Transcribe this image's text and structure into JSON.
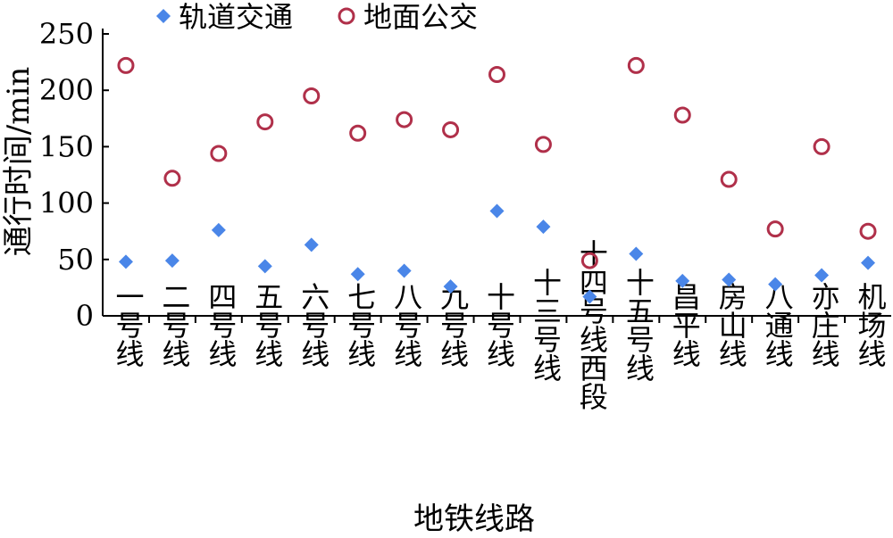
{
  "chart_data": {
    "type": "scatter",
    "title": "",
    "xlabel": "地铁线路",
    "ylabel": "通行时间/min",
    "ylim": [
      0,
      250
    ],
    "yticks": [
      0,
      50,
      100,
      150,
      200,
      250
    ],
    "grid": false,
    "legend_position": "top",
    "categories": [
      "一号线",
      "二号线",
      "四号线",
      "五号线",
      "六号线",
      "七号线",
      "八号线",
      "九号线",
      "十号线",
      "十三号线",
      "十四号线西段",
      "十五号线",
      "昌平线",
      "房山线",
      "八通线",
      "亦庄线",
      "机场线"
    ],
    "series": [
      {
        "name": "轨道交通",
        "marker": "diamond",
        "color": "#4a86e8",
        "values": [
          48,
          49,
          76,
          44,
          63,
          37,
          40,
          26,
          93,
          79,
          17,
          55,
          31,
          32,
          28,
          36,
          47
        ]
      },
      {
        "name": "地面公交",
        "marker": "circle-open",
        "color": "#b0304a",
        "values": [
          222,
          122,
          144,
          172,
          195,
          162,
          174,
          165,
          214,
          152,
          49,
          222,
          178,
          121,
          77,
          150,
          75
        ]
      }
    ]
  }
}
